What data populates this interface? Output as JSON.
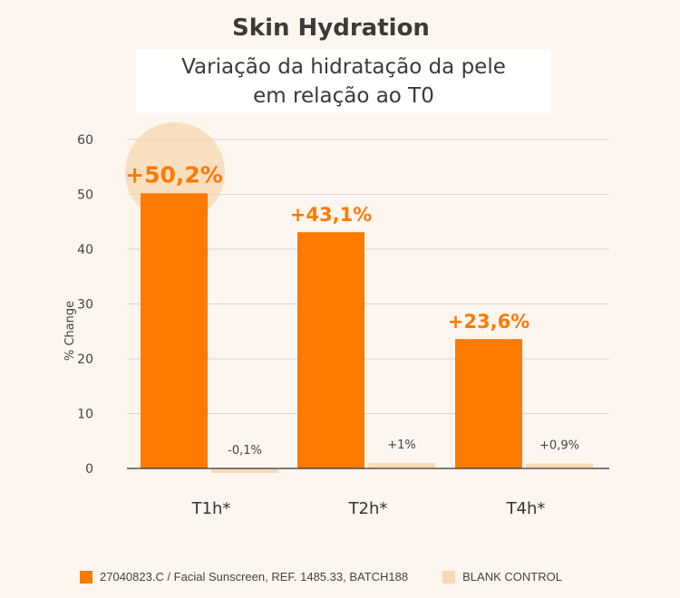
{
  "title": "Skin Hydration",
  "subtitle_lines": [
    "Variação da hidratação da pele",
    "em relação ao T0"
  ],
  "colors": {
    "product": "#ff7a00",
    "control": "#fcd9b6",
    "grid": "#d9d6d0",
    "axis": "#333333",
    "highlight": "#f7d7b0"
  },
  "chart_data": {
    "type": "bar",
    "categories": [
      "T1h*",
      "T2h*",
      "T4h*"
    ],
    "series": [
      {
        "name": "27040823.C / Facial Sunscreen, REF. 1485.33, BATCH188",
        "values": [
          50.2,
          43.1,
          23.6
        ],
        "labels": [
          "+50,2%",
          "+43,1%",
          "+23,6%"
        ],
        "color": "#ff7a00"
      },
      {
        "name": "BLANK CONTROL",
        "values": [
          -0.1,
          1,
          0.9
        ],
        "labels": [
          "-0,1%",
          "+1%",
          "+0,9%"
        ],
        "color": "#fcd9b6"
      }
    ],
    "ylabel": "% Change",
    "ylim": [
      0,
      60
    ],
    "yticks": [
      0,
      10,
      20,
      30,
      40,
      50,
      60
    ],
    "grid": true,
    "legend": "bottom"
  }
}
